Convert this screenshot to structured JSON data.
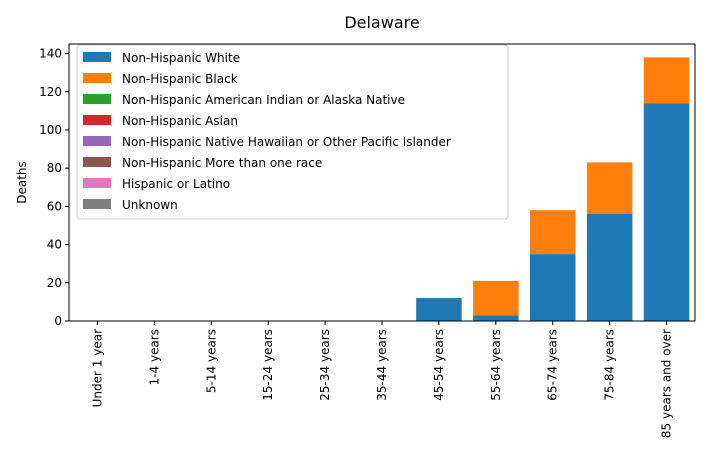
{
  "chart_data": {
    "type": "bar",
    "stacked": true,
    "title": "Delaware",
    "xlabel": "",
    "ylabel": "Deaths",
    "ylim": [
      0,
      145
    ],
    "yticks": [
      0,
      20,
      40,
      60,
      80,
      100,
      120,
      140
    ],
    "legend_position": "top-left",
    "categories": [
      "Under 1 year",
      "1-4 years",
      "5-14 years",
      "15-24 years",
      "25-34 years",
      "35-44 years",
      "45-54 years",
      "55-64 years",
      "65-74 years",
      "75-84 years",
      "85 years and over"
    ],
    "series": [
      {
        "name": "Non-Hispanic White",
        "color": "#1f77b4",
        "values": [
          0,
          0,
          0,
          0,
          0,
          0,
          12,
          3,
          35,
          56,
          114
        ]
      },
      {
        "name": "Non-Hispanic Black",
        "color": "#ff7f0e",
        "values": [
          0,
          0,
          0,
          0,
          0,
          0,
          0,
          18,
          23,
          27,
          24
        ]
      },
      {
        "name": "Non-Hispanic American Indian or Alaska Native",
        "color": "#2ca02c",
        "values": [
          0,
          0,
          0,
          0,
          0,
          0,
          0,
          0,
          0,
          0,
          0
        ]
      },
      {
        "name": "Non-Hispanic Asian",
        "color": "#d62728",
        "values": [
          0,
          0,
          0,
          0,
          0,
          0,
          0,
          0,
          0,
          0,
          0
        ]
      },
      {
        "name": "Non-Hispanic Native Hawaiian or Other Pacific Islander",
        "color": "#9467bd",
        "values": [
          0,
          0,
          0,
          0,
          0,
          0,
          0,
          0,
          0,
          0,
          0
        ]
      },
      {
        "name": "Non-Hispanic More than one race",
        "color": "#8c564b",
        "values": [
          0,
          0,
          0,
          0,
          0,
          0,
          0,
          0,
          0,
          0,
          0
        ]
      },
      {
        "name": "Hispanic or Latino",
        "color": "#e377c2",
        "values": [
          0,
          0,
          0,
          0,
          0,
          0,
          0,
          0,
          0,
          0,
          0
        ]
      },
      {
        "name": "Unknown",
        "color": "#7f7f7f",
        "values": [
          0,
          0,
          0,
          0,
          0,
          0,
          0,
          0,
          0,
          0,
          0
        ]
      }
    ]
  }
}
